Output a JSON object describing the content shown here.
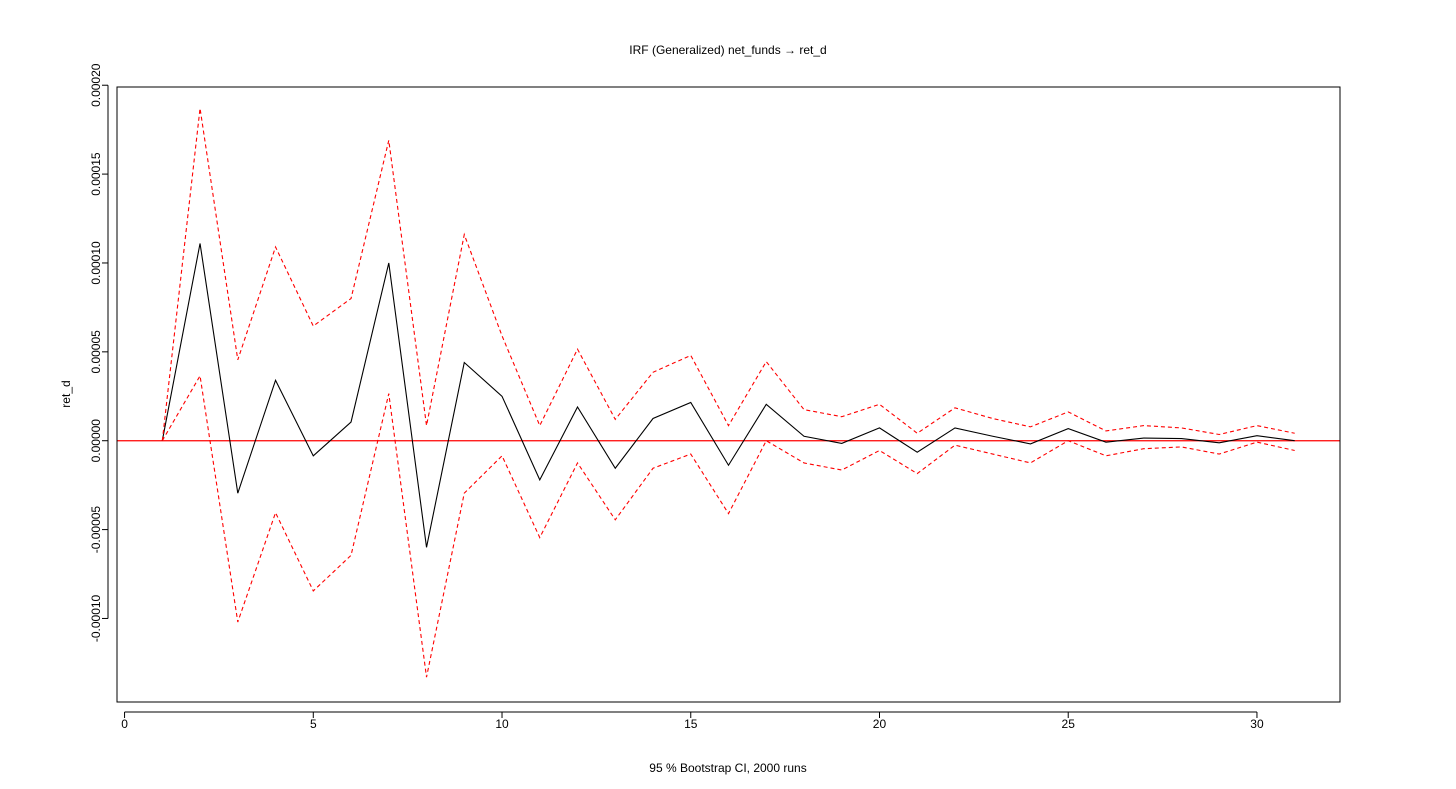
{
  "chart_data": {
    "type": "line",
    "title": "IRF (Generalized) net_funds → ret_d",
    "xlabel": "95 % Bootstrap CI,  2000 runs",
    "ylabel": "ret_d",
    "xlim": [
      -0.2,
      32.2
    ],
    "ylim": [
      -0.000147,
      0.000199
    ],
    "x_ticks": [
      0,
      5,
      10,
      15,
      20,
      25,
      30
    ],
    "x_tick_labels": [
      "0",
      "5",
      "10",
      "15",
      "20",
      "25",
      "30"
    ],
    "y_ticks": [
      -0.0001,
      -5e-05,
      0,
      5e-05,
      0.0001,
      0.00015,
      0.0002
    ],
    "y_tick_labels": [
      "-0.00010",
      "-0.00005",
      "0.00000",
      "0.00005",
      "0.00010",
      "0.00015",
      "0.00020"
    ],
    "grid": false,
    "zero_line": {
      "y": 0,
      "color": "#ff0000"
    },
    "x": [
      1,
      2,
      3,
      4,
      5,
      6,
      7,
      8,
      9,
      10,
      11,
      12,
      13,
      14,
      15,
      16,
      17,
      18,
      19,
      20,
      21,
      22,
      23,
      24,
      25,
      26,
      27,
      28,
      29,
      30,
      31
    ],
    "series": [
      {
        "role": "irf",
        "color": "#000000",
        "dash": "solid",
        "values": [
          0.0,
          0.000111,
          -2.95e-05,
          3.4e-05,
          -8.5e-06,
          1.05e-05,
          0.0001,
          -6e-05,
          4.4e-05,
          2.5e-05,
          -2.2e-05,
          1.9e-05,
          -1.55e-05,
          1.25e-05,
          2.15e-05,
          -1.38e-05,
          2.05e-05,
          2.5e-06,
          -1.5e-06,
          7.2e-06,
          -6.5e-06,
          7.2e-06,
          2.5e-06,
          -1.8e-06,
          6.8e-06,
          -8e-07,
          1.5e-06,
          1.2e-06,
          -1.2e-06,
          2.8e-06,
          0.0
        ]
      },
      {
        "role": "upper",
        "color": "#ff0000",
        "dash": "dashed",
        "values": [
          0.0,
          0.000187,
          4.55e-05,
          0.000109,
          6.45e-05,
          8e-05,
          0.000169,
          8.5e-06,
          0.000116,
          5.9e-05,
          8.5e-06,
          5.15e-05,
          1.2e-05,
          3.85e-05,
          4.8e-05,
          8.5e-06,
          4.45e-05,
          1.75e-05,
          1.35e-05,
          2.05e-05,
          4.2e-06,
          1.85e-05,
          1.25e-05,
          7.8e-06,
          1.62e-05,
          5.5e-06,
          8.5e-06,
          7.2e-06,
          3.5e-06,
          8.5e-06,
          4.2e-06
        ]
      },
      {
        "role": "lower",
        "color": "#ff0000",
        "dash": "dashed",
        "values": [
          0.0,
          3.65e-05,
          -0.000102,
          -4.05e-05,
          -8.45e-05,
          -6.45e-05,
          2.65e-05,
          -0.000133,
          -2.95e-05,
          -8.5e-06,
          -5.45e-05,
          -1.25e-05,
          -4.45e-05,
          -1.55e-05,
          -7.5e-06,
          -4.1e-05,
          0.0,
          -1.25e-05,
          -1.65e-05,
          -5.5e-06,
          -1.85e-05,
          -2.5e-06,
          -7.5e-06,
          -1.25e-05,
          0.0,
          -8.5e-06,
          -4.5e-06,
          -3.5e-06,
          -7.5e-06,
          -8e-07,
          -5.5e-06
        ]
      }
    ]
  }
}
